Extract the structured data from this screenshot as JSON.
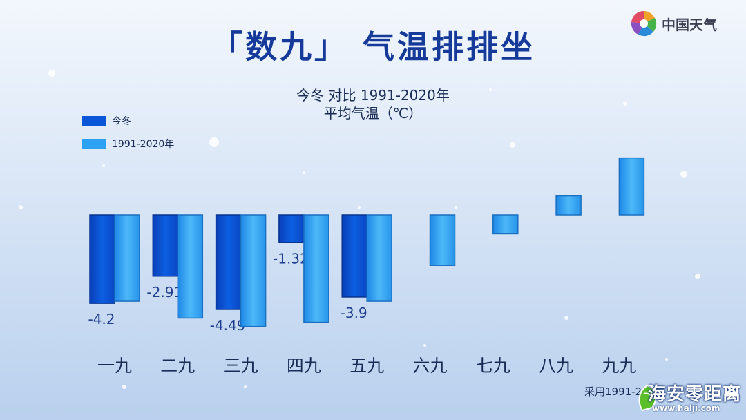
{
  "header": {
    "title": "「数九」 气温排排坐",
    "subtitle_line1": "今冬 对比 1991-2020年",
    "subtitle_line2": "平均气温（℃）"
  },
  "logo": {
    "text": "中国天气"
  },
  "footnote": {
    "text": "采用1991-2"
  },
  "watermark": {
    "main": "海安零距离",
    "url": "www.halji.com"
  },
  "colors": {
    "current": "#0a55d8",
    "normal": "#2ea2f2",
    "title": "#163a9a"
  },
  "chart_data": {
    "type": "bar",
    "categories": [
      "一九",
      "二九",
      "三九",
      "四九",
      "五九",
      "六九",
      "七九",
      "八九",
      "九九"
    ],
    "series": [
      {
        "name": "今冬",
        "values": [
          -4.2,
          -2.91,
          -4.49,
          -1.32,
          -3.9,
          null,
          null,
          null,
          null
        ],
        "labels": [
          "-4.2",
          "-2.91",
          "-4.49",
          "-1.32",
          "-3.9",
          "",
          "",
          "",
          ""
        ]
      },
      {
        "name": "1991-2020年",
        "values": [
          -4.1,
          -4.9,
          -5.3,
          -5.1,
          -4.1,
          -2.4,
          -0.9,
          0.9,
          2.7
        ],
        "labels": [
          "",
          "",
          "",
          "",
          "",
          "",
          "",
          "",
          ""
        ]
      }
    ],
    "legend": "top-left",
    "ylim": [
      -6,
      3
    ],
    "grid": false
  }
}
